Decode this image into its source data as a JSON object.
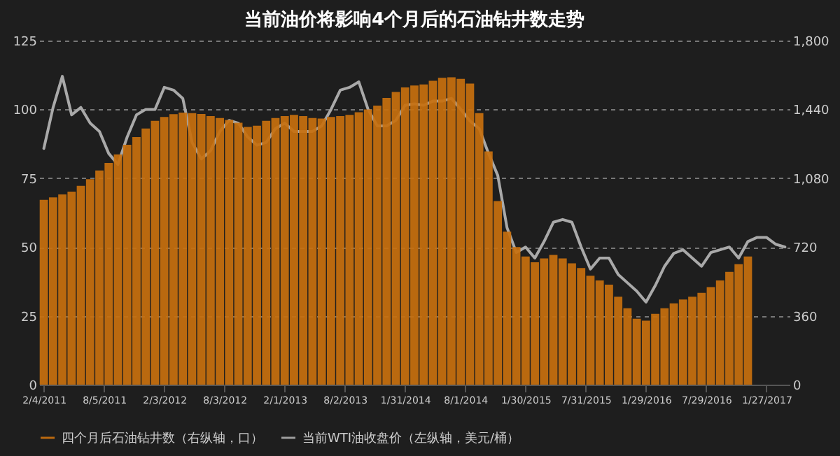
{
  "chart_data": {
    "type": "bar",
    "title": "当前油价将影响4个月后的石油钻井数走势",
    "x": [
      "2011-02-04",
      "2011-03-04",
      "2011-04-01",
      "2011-04-29",
      "2011-05-27",
      "2011-06-24",
      "2011-07-22",
      "2011-08-19",
      "2011-09-16",
      "2011-10-14",
      "2011-11-11",
      "2011-12-09",
      "2012-01-06",
      "2012-02-03",
      "2012-03-02",
      "2012-03-30",
      "2012-04-27",
      "2012-05-25",
      "2012-06-22",
      "2012-07-20",
      "2012-08-17",
      "2012-09-14",
      "2012-10-12",
      "2012-11-09",
      "2012-12-07",
      "2013-01-04",
      "2013-02-01",
      "2013-03-01",
      "2013-03-29",
      "2013-04-26",
      "2013-05-24",
      "2013-06-21",
      "2013-07-19",
      "2013-08-16",
      "2013-09-13",
      "2013-10-11",
      "2013-11-08",
      "2013-12-06",
      "2014-01-03",
      "2014-01-31",
      "2014-02-28",
      "2014-03-28",
      "2014-04-25",
      "2014-05-23",
      "2014-06-20",
      "2014-07-18",
      "2014-08-15",
      "2014-09-12",
      "2014-10-10",
      "2014-11-07",
      "2014-12-05",
      "2015-01-02",
      "2015-01-30",
      "2015-02-27",
      "2015-03-27",
      "2015-04-24",
      "2015-05-22",
      "2015-06-19",
      "2015-07-17",
      "2015-08-14",
      "2015-09-11",
      "2015-10-09",
      "2015-11-06",
      "2015-12-04",
      "2016-01-01",
      "2016-01-29",
      "2016-02-26",
      "2016-03-25",
      "2016-04-22",
      "2016-05-20",
      "2016-06-17",
      "2016-07-15",
      "2016-08-12",
      "2016-09-09",
      "2016-10-07",
      "2016-11-04",
      "2016-12-02"
    ],
    "series": [
      {
        "name": "四个月后石油钻井数（右纵轴，口）",
        "type": "bar",
        "axis": "y2",
        "color": "#c8700e",
        "values": [
          967,
          980,
          995,
          1010,
          1040,
          1075,
          1120,
          1160,
          1205,
          1255,
          1295,
          1340,
          1380,
          1400,
          1415,
          1423,
          1420,
          1416,
          1405,
          1395,
          1385,
          1370,
          1348,
          1355,
          1380,
          1395,
          1405,
          1411,
          1405,
          1395,
          1392,
          1400,
          1405,
          1411,
          1425,
          1440,
          1460,
          1500,
          1531,
          1555,
          1565,
          1570,
          1590,
          1605,
          1608,
          1600,
          1575,
          1420,
          1220,
          960,
          800,
          720,
          670,
          640,
          660,
          679,
          660,
          635,
          610,
          570,
          545,
          523,
          460,
          400,
          345,
          335,
          370,
          400,
          425,
          445,
          460,
          480,
          510,
          545,
          590,
          630,
          670
        ]
      },
      {
        "name": "当前WTI油收盘价（左纵轴，美元/桶）",
        "type": "line",
        "color": "#a9a9a9",
        "x": [
          "2011-02-04",
          "2011-03-04",
          "2011-04-01",
          "2011-04-29",
          "2011-05-27",
          "2011-06-24",
          "2011-07-22",
          "2011-08-19",
          "2011-09-16",
          "2011-10-14",
          "2011-11-11",
          "2011-12-09",
          "2012-01-06",
          "2012-02-03",
          "2012-03-02",
          "2012-03-30",
          "2012-04-27",
          "2012-05-25",
          "2012-06-22",
          "2012-07-20",
          "2012-08-17",
          "2012-09-14",
          "2012-10-12",
          "2012-11-09",
          "2012-12-07",
          "2013-01-04",
          "2013-02-01",
          "2013-03-01",
          "2013-03-29",
          "2013-04-26",
          "2013-05-24",
          "2013-06-21",
          "2013-07-19",
          "2013-08-16",
          "2013-09-13",
          "2013-10-11",
          "2013-11-08",
          "2013-12-06",
          "2014-01-03",
          "2014-01-31",
          "2014-02-28",
          "2014-03-28",
          "2014-04-25",
          "2014-05-23",
          "2014-06-20",
          "2014-07-18",
          "2014-08-15",
          "2014-09-12",
          "2014-10-10",
          "2014-11-07",
          "2014-12-05",
          "2015-01-02",
          "2015-01-30",
          "2015-02-27",
          "2015-03-27",
          "2015-04-24",
          "2015-05-22",
          "2015-06-19",
          "2015-07-17",
          "2015-08-14",
          "2015-09-11",
          "2015-10-09",
          "2015-11-06",
          "2015-12-04",
          "2016-01-01",
          "2016-01-29",
          "2016-02-26",
          "2016-03-25",
          "2016-04-22",
          "2016-05-20",
          "2016-06-17",
          "2016-07-15",
          "2016-08-12",
          "2016-09-09",
          "2016-10-07",
          "2016-11-04",
          "2016-12-02",
          "2016-12-30",
          "2017-01-27",
          "2017-02-24",
          "2017-03-24"
        ],
        "values": [
          85.8,
          100.7,
          112,
          98,
          100.7,
          95,
          92,
          84,
          80,
          90,
          98,
          100,
          100,
          108,
          107,
          104,
          88,
          82,
          85,
          92,
          96,
          95,
          90,
          87,
          88,
          93,
          95,
          92,
          92,
          92,
          94,
          100,
          107,
          108,
          110,
          100,
          94,
          94,
          96,
          101.5,
          102,
          101.5,
          103,
          103,
          104,
          100,
          95.8,
          93,
          84,
          76,
          57,
          48,
          50,
          46,
          52,
          59,
          60,
          59,
          50,
          42,
          46,
          46,
          40,
          37,
          34,
          30,
          36,
          43,
          47.7,
          49,
          46,
          43,
          48,
          49,
          50,
          46,
          52,
          53.5,
          53.5,
          51,
          50
        ]
      }
    ],
    "xlim": [
      "2011-01-21",
      "2017-04-07"
    ],
    "xticks": [
      {
        "value": "2011-02-04",
        "label": "2/4/2011"
      },
      {
        "value": "2011-08-05",
        "label": "8/5/2011"
      },
      {
        "value": "2012-02-03",
        "label": "2/3/2012"
      },
      {
        "value": "2012-08-03",
        "label": "8/3/2012"
      },
      {
        "value": "2013-02-01",
        "label": "2/1/2013"
      },
      {
        "value": "2013-08-02",
        "label": "8/2/2013"
      },
      {
        "value": "2014-01-31",
        "label": "1/31/2014"
      },
      {
        "value": "2014-08-01",
        "label": "8/1/2014"
      },
      {
        "value": "2015-01-30",
        "label": "1/30/2015"
      },
      {
        "value": "2015-07-31",
        "label": "7/31/2015"
      },
      {
        "value": "2016-01-29",
        "label": "1/29/2016"
      },
      {
        "value": "2016-07-29",
        "label": "7/29/2016"
      },
      {
        "value": "2017-01-27",
        "label": "1/27/2017"
      }
    ],
    "ylim": [
      0,
      125
    ],
    "yticks": [
      0,
      25,
      50,
      75,
      100,
      125
    ],
    "y2lim": [
      0,
      1800
    ],
    "y2ticks": [
      0,
      {
        "value": 360,
        "label": "360"
      },
      {
        "value": 720,
        "label": "720"
      },
      {
        "value": 1080,
        "label": "1,080"
      },
      {
        "value": 1440,
        "label": "1,440"
      },
      {
        "value": 1800,
        "label": "1,800"
      }
    ],
    "grid": "y",
    "legend": "bottom"
  }
}
